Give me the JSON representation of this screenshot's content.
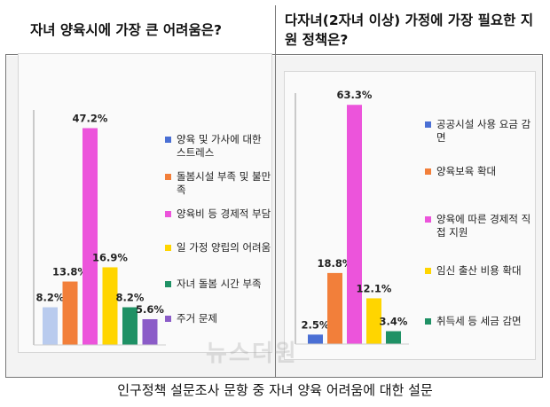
{
  "left_title": "자녀 양육시에 가장 큰 어려움은?",
  "right_title": "다자녀(2자녀 이상) 가정에 가장 필요한 지원 정책은?",
  "footer": "인구정책 설문조사 문항 중 자녀 양육 어려움에 대한 설문",
  "watermark": "뉴스더원",
  "chart_data": [
    {
      "type": "bar",
      "title": "자녀 양육시에 가장 큰 어려움은?",
      "unit": "%",
      "ylim": [
        0,
        50
      ],
      "grid": false,
      "legend_position": "right",
      "categories": [
        "양육 및 가사에 대한 스트레스",
        "돌봄시설 부족 및 불만족",
        "양육비 등 경제적 부담",
        "일 가정 양립의 어려움",
        "자녀 돌봄 시간 부족",
        "주거 문제"
      ],
      "values": [
        8.2,
        13.8,
        47.2,
        16.9,
        8.2,
        5.6
      ],
      "value_labels": [
        "8.2%",
        "13.8%",
        "47.2%",
        "16.9%",
        "8.2%",
        "5.6%"
      ],
      "colors": [
        "#4a6fd4",
        "#f27f3a",
        "#ec54db",
        "#ffd500",
        "#1f9165",
        "#8b5cc8"
      ],
      "bar_colors": [
        "#b9cbee",
        "#f27f3a",
        "#ec54db",
        "#ffd500",
        "#1f9165",
        "#8b5cc8"
      ]
    },
    {
      "type": "bar",
      "title": "다자녀(2자녀 이상) 가정에 가장 필요한 지원 정책은?",
      "unit": "%",
      "ylim": [
        0,
        65
      ],
      "grid": false,
      "legend_position": "right",
      "categories": [
        "공공시설 사용 요금 감면",
        "양육보육 확대",
        "양육에 따른 경제적 직접 지원",
        "임신 출산 비용 확대",
        "취득세 등 세금 감면"
      ],
      "values": [
        2.5,
        18.8,
        63.3,
        12.1,
        3.4
      ],
      "value_labels": [
        "2.5%",
        "18.8%",
        "63.3%",
        "12.1%",
        "3.4%"
      ],
      "colors": [
        "#4a6fd4",
        "#f27f3a",
        "#ec54db",
        "#ffd500",
        "#1f9165"
      ],
      "bar_colors": [
        "#4a6fd4",
        "#f27f3a",
        "#ec54db",
        "#ffd500",
        "#1f9165"
      ]
    }
  ]
}
